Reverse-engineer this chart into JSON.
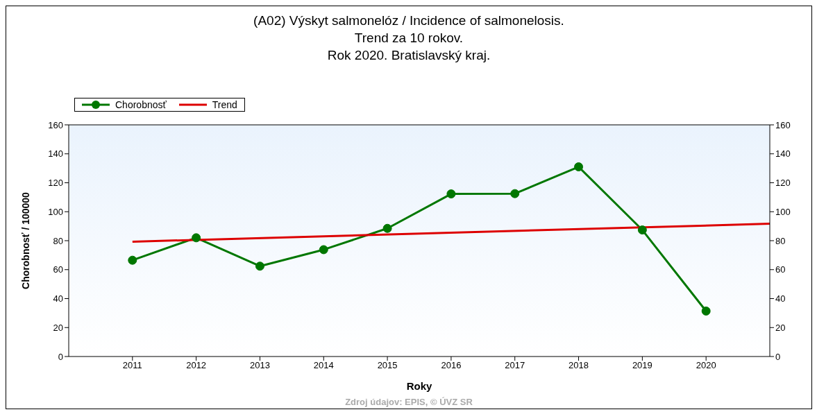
{
  "chart_data": {
    "type": "line",
    "title": "(A02) Výskyt salmonelóz / Incidence of salmonelosis.\nTrend za 10 rokov.\nRok 2020. Bratislavský kraj.",
    "xlabel": "Roky",
    "ylabel": "Chorobnosť / 100000",
    "annotations": [
      "Zdroj údajov: EPIS, © ÚVZ SR"
    ],
    "xlim": [
      2010,
      2021
    ],
    "xticks": [
      2011,
      2012,
      2013,
      2014,
      2015,
      2016,
      2017,
      2018,
      2019,
      2020
    ],
    "ylim": [
      0,
      160
    ],
    "yticks": [
      0,
      20,
      40,
      60,
      80,
      100,
      120,
      140,
      160
    ],
    "y2lim": [
      0,
      160
    ],
    "y2ticks": [
      0,
      20,
      40,
      60,
      80,
      100,
      120,
      140,
      160
    ],
    "grid": false,
    "legend": "top left",
    "marker": "circle",
    "line_style": "solid",
    "series": [
      {
        "name": "Chorobnosť",
        "color": "#007700",
        "x": [
          2011,
          2012,
          2013,
          2014,
          2015,
          2016,
          2017,
          2018,
          2019,
          2020
        ],
        "values": [
          66.5,
          82,
          62.4,
          73.8,
          88.5,
          112.3,
          112.5,
          131,
          87.4,
          31.4
        ]
      },
      {
        "name": "Trend",
        "color": "#dd0000",
        "marker": "none",
        "x": [
          2011,
          2021
        ],
        "values": [
          79.3,
          91.7
        ]
      }
    ]
  }
}
